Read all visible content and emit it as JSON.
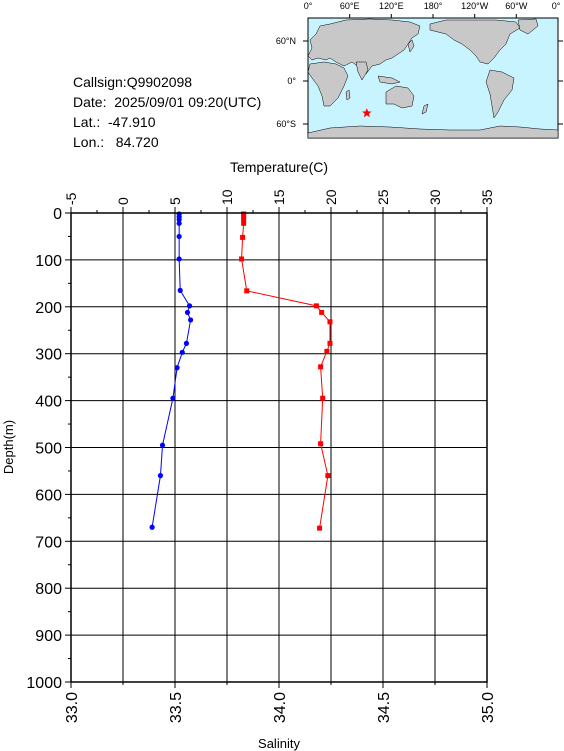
{
  "station": {
    "callsign": "Callsign:Q9902098",
    "date": "Date:  2025/09/01 09:20(UTC)",
    "lat": "Lat.:  -47.910",
    "lon": "Lon.:   84.720"
  },
  "map": {
    "lon_labels": [
      "0°",
      "60°E",
      "120°E",
      "180°",
      "120°W",
      "60°W",
      "0°"
    ],
    "lat_labels": [
      "60°N",
      "0°",
      "60°S"
    ],
    "ocean_color": "#c8f4ff",
    "land_color": "#c8c8c8",
    "marker": {
      "lat": -47.91,
      "lon": 84.72,
      "color": "#ff0000",
      "icon": "star-icon"
    }
  },
  "chart_data": {
    "type": "line",
    "top_axis": {
      "label": "Temperature(C)",
      "range": [
        -5,
        35
      ],
      "ticks": [
        "-5",
        "0",
        "5",
        "10",
        "15",
        "20",
        "25",
        "30",
        "35"
      ]
    },
    "bottom_axis": {
      "label": "Salinity",
      "range": [
        33.0,
        35.0
      ],
      "ticks": [
        "33.0",
        "33.5",
        "34.0",
        "34.5",
        "35.0"
      ]
    },
    "left_axis": {
      "label": "Depth(m)",
      "range": [
        0,
        1000
      ],
      "inverted": true,
      "ticks": [
        "0",
        "100",
        "200",
        "300",
        "400",
        "500",
        "600",
        "700",
        "800",
        "900",
        "1000"
      ]
    },
    "grid": true,
    "series": [
      {
        "axis": "temperature",
        "color": "#ff0000",
        "marker": "square",
        "points": [
          [
            11.6,
            2
          ],
          [
            11.6,
            8
          ],
          [
            11.6,
            14
          ],
          [
            11.6,
            22
          ],
          [
            11.5,
            52
          ],
          [
            11.4,
            98
          ],
          [
            11.9,
            166
          ],
          [
            18.6,
            198
          ],
          [
            19.1,
            212
          ],
          [
            19.9,
            232
          ],
          [
            19.9,
            278
          ],
          [
            19.6,
            295
          ],
          [
            19.0,
            328
          ],
          [
            19.2,
            395
          ],
          [
            19.0,
            492
          ],
          [
            19.7,
            560
          ],
          [
            18.9,
            672
          ]
        ]
      },
      {
        "axis": "salinity",
        "color": "#0000ff",
        "marker": "circle",
        "points": [
          [
            33.52,
            2
          ],
          [
            33.52,
            8
          ],
          [
            33.52,
            14
          ],
          [
            33.52,
            22
          ],
          [
            33.52,
            50
          ],
          [
            33.52,
            98
          ],
          [
            33.525,
            165
          ],
          [
            33.57,
            198
          ],
          [
            33.56,
            212
          ],
          [
            33.575,
            228
          ],
          [
            33.555,
            278
          ],
          [
            33.535,
            297
          ],
          [
            33.51,
            330
          ],
          [
            33.49,
            395
          ],
          [
            33.44,
            495
          ],
          [
            33.43,
            560
          ],
          [
            33.39,
            670
          ]
        ]
      }
    ]
  }
}
